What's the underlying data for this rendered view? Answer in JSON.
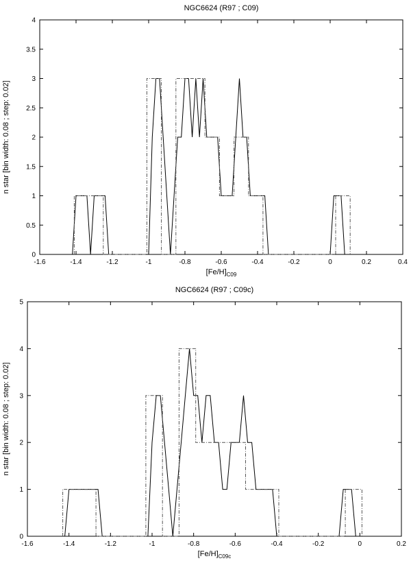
{
  "chart_data": [
    {
      "type": "line",
      "title": "NGC6624 (R97 ; C09)",
      "xlabel_main": "[Fe/H]",
      "xlabel_sub": "C09",
      "ylabel": "n star [bin width: 0.08 ; step: 0.02]",
      "xlim": [
        -1.6,
        0.4
      ],
      "ylim": [
        0,
        4
      ],
      "xticks": [
        "-1.6",
        "-1.4",
        "-1.2",
        "-1",
        "-0.8",
        "-0.6",
        "-0.4",
        "-0.2",
        "0",
        "0.2",
        "0.4"
      ],
      "yticks": [
        "0",
        "0.5",
        "1",
        "1.5",
        "2",
        "2.5",
        "3",
        "3.5",
        "4"
      ],
      "series": [
        {
          "style": "solid",
          "x": [
            -1.42,
            -1.4,
            -1.36,
            -1.34,
            -1.32,
            -1.3,
            -1.26,
            -1.24,
            -1.22,
            -1.0,
            -0.98,
            -0.96,
            -0.94,
            -0.92,
            -0.9,
            -0.88,
            -0.86,
            -0.84,
            -0.82,
            -0.8,
            -0.78,
            -0.76,
            -0.74,
            -0.72,
            -0.7,
            -0.68,
            -0.66,
            -0.64,
            -0.62,
            -0.6,
            -0.58,
            -0.56,
            -0.54,
            -0.52,
            -0.5,
            -0.48,
            -0.46,
            -0.44,
            -0.42,
            -0.4,
            -0.38,
            -0.36,
            -0.34,
            0.0,
            0.02,
            0.06,
            0.08
          ],
          "y": [
            0,
            1,
            1,
            1,
            0,
            1,
            1,
            1,
            0,
            0,
            2,
            3,
            3,
            2,
            1,
            0,
            1,
            2,
            2,
            3,
            3,
            2,
            3,
            2,
            3,
            2,
            2,
            2,
            2,
            1,
            1,
            1,
            1,
            2,
            3,
            2,
            2,
            1,
            1,
            1,
            1,
            1,
            0,
            0,
            1,
            1,
            0
          ]
        },
        {
          "style": "dash-dot",
          "x": [
            -1.41,
            -1.41,
            -1.33,
            -1.33,
            -1.25,
            -1.25,
            -1.01,
            -1.01,
            -0.93,
            -0.93,
            -0.85,
            -0.85,
            -0.77,
            -0.77,
            -0.69,
            -0.69,
            -0.61,
            -0.61,
            -0.53,
            -0.53,
            -0.45,
            -0.45,
            -0.37,
            -0.37,
            0.03,
            0.03,
            0.11,
            0.11
          ],
          "y": [
            0,
            1,
            1,
            1,
            1,
            0,
            0,
            3,
            3,
            0,
            0,
            3,
            3,
            3,
            3,
            2,
            2,
            1,
            1,
            2,
            2,
            1,
            1,
            0,
            0,
            1,
            1,
            0
          ]
        }
      ]
    },
    {
      "type": "line",
      "title": "NGC6624 (R97 ; C09c)",
      "xlabel_main": "[Fe/H]",
      "xlabel_sub": "C09c",
      "ylabel": "n star [bin width: 0.08 ; step: 0.02]",
      "xlim": [
        -1.6,
        0.2
      ],
      "ylim": [
        0,
        5
      ],
      "xticks": [
        "-1.6",
        "-1.4",
        "-1.2",
        "-1",
        "-0.8",
        "-0.6",
        "-0.4",
        "-0.2",
        "0",
        "0.2"
      ],
      "yticks": [
        "0",
        "1",
        "2",
        "3",
        "4",
        "5"
      ],
      "series": [
        {
          "style": "solid",
          "x": [
            -1.42,
            -1.4,
            -1.26,
            -1.24,
            -1.02,
            -1.0,
            -0.98,
            -0.96,
            -0.94,
            -0.92,
            -0.9,
            -0.88,
            -0.86,
            -0.84,
            -0.82,
            -0.8,
            -0.78,
            -0.76,
            -0.74,
            -0.72,
            -0.7,
            -0.68,
            -0.66,
            -0.64,
            -0.62,
            -0.6,
            -0.58,
            -0.56,
            -0.54,
            -0.52,
            -0.5,
            -0.48,
            -0.46,
            -0.44,
            -0.42,
            -0.4,
            -0.38,
            -0.1,
            -0.08,
            -0.04,
            -0.02
          ],
          "y": [
            0,
            1,
            1,
            0,
            0,
            2,
            3,
            3,
            2,
            1,
            0,
            1,
            2,
            3,
            4,
            3,
            3,
            2,
            3,
            3,
            2,
            2,
            1,
            1,
            2,
            2,
            2,
            3,
            2,
            2,
            1,
            1,
            1,
            1,
            1,
            0,
            0,
            0,
            1,
            1,
            0
          ]
        },
        {
          "style": "dash-dot",
          "x": [
            -1.43,
            -1.43,
            -1.27,
            -1.27,
            -1.03,
            -1.03,
            -0.95,
            -0.95,
            -0.87,
            -0.87,
            -0.79,
            -0.79,
            -0.55,
            -0.55,
            -0.39,
            -0.39,
            -0.07,
            -0.07,
            0.01,
            0.01
          ],
          "y": [
            0,
            1,
            1,
            0,
            0,
            3,
            3,
            0,
            0,
            4,
            4,
            2,
            2,
            1,
            1,
            0,
            0,
            1,
            1,
            0
          ]
        }
      ]
    }
  ]
}
